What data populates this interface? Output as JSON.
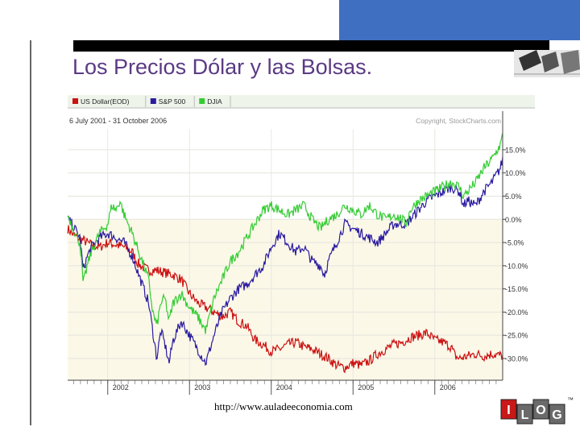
{
  "slide": {
    "title": "Los Precios Dólar y las Bolsas.",
    "footer_url": "http://www.auladeeconomia.com"
  },
  "logo": {
    "letters": [
      "I",
      "L",
      "O",
      "G"
    ],
    "trademark": "™"
  },
  "chart_data": {
    "type": "line",
    "title": "6 July 2001 - 31 October 2006",
    "copyright": "Copyright, StockCharts.com",
    "legend_placement": "top-left",
    "series": [
      {
        "name": "US Dollar(EOD)",
        "color": "#cc1111",
        "points": [
          [
            2001.51,
            -2
          ],
          [
            2001.56,
            -3
          ],
          [
            2001.63,
            -4
          ],
          [
            2001.7,
            -4.5
          ],
          [
            2001.8,
            -5.5
          ],
          [
            2001.9,
            -6
          ],
          [
            2002.0,
            -5
          ],
          [
            2002.1,
            -5.5
          ],
          [
            2002.2,
            -6
          ],
          [
            2002.3,
            -7
          ],
          [
            2002.35,
            -9
          ],
          [
            2002.4,
            -10
          ],
          [
            2002.5,
            -11
          ],
          [
            2002.6,
            -11
          ],
          [
            2002.7,
            -11.5
          ],
          [
            2002.8,
            -12
          ],
          [
            2002.9,
            -13
          ],
          [
            2003.0,
            -16
          ],
          [
            2003.1,
            -18
          ],
          [
            2003.2,
            -19
          ],
          [
            2003.3,
            -20
          ],
          [
            2003.4,
            -21
          ],
          [
            2003.5,
            -20
          ],
          [
            2003.55,
            -21
          ],
          [
            2003.6,
            -22
          ],
          [
            2003.7,
            -23
          ],
          [
            2003.8,
            -26
          ],
          [
            2003.9,
            -27
          ],
          [
            2004.0,
            -28.5
          ],
          [
            2004.1,
            -28
          ],
          [
            2004.2,
            -27
          ],
          [
            2004.3,
            -26.5
          ],
          [
            2004.4,
            -27.5
          ],
          [
            2004.5,
            -28
          ],
          [
            2004.6,
            -29
          ],
          [
            2004.7,
            -30
          ],
          [
            2004.8,
            -31.5
          ],
          [
            2004.9,
            -32
          ],
          [
            2005.0,
            -31
          ],
          [
            2005.1,
            -31.5
          ],
          [
            2005.2,
            -30.5
          ],
          [
            2005.3,
            -29
          ],
          [
            2005.4,
            -28
          ],
          [
            2005.5,
            -27
          ],
          [
            2005.6,
            -26.5
          ],
          [
            2005.7,
            -25.5
          ],
          [
            2005.8,
            -25
          ],
          [
            2005.9,
            -24.5
          ],
          [
            2006.0,
            -26
          ],
          [
            2006.1,
            -26.5
          ],
          [
            2006.2,
            -27.5
          ],
          [
            2006.25,
            -29.5
          ],
          [
            2006.3,
            -30
          ],
          [
            2006.4,
            -29.5
          ],
          [
            2006.5,
            -29
          ],
          [
            2006.6,
            -29.5
          ],
          [
            2006.7,
            -29
          ],
          [
            2006.83,
            -29.5
          ]
        ]
      },
      {
        "name": "S&P 500",
        "color": "#2a1aa0",
        "points": [
          [
            2001.51,
            0
          ],
          [
            2001.56,
            -1
          ],
          [
            2001.63,
            -3
          ],
          [
            2001.66,
            -4
          ],
          [
            2001.7,
            -11
          ],
          [
            2001.75,
            -8
          ],
          [
            2001.8,
            -6
          ],
          [
            2001.9,
            -4
          ],
          [
            2002.0,
            -3
          ],
          [
            2002.1,
            -4
          ],
          [
            2002.2,
            -5
          ],
          [
            2002.3,
            -8
          ],
          [
            2002.4,
            -13
          ],
          [
            2002.5,
            -18
          ],
          [
            2002.55,
            -24
          ],
          [
            2002.6,
            -30
          ],
          [
            2002.65,
            -24
          ],
          [
            2002.7,
            -27
          ],
          [
            2002.75,
            -31
          ],
          [
            2002.8,
            -26
          ],
          [
            2002.85,
            -24
          ],
          [
            2002.9,
            -22
          ],
          [
            2003.0,
            -25
          ],
          [
            2003.1,
            -28
          ],
          [
            2003.2,
            -31
          ],
          [
            2003.3,
            -25
          ],
          [
            2003.4,
            -20
          ],
          [
            2003.5,
            -17
          ],
          [
            2003.6,
            -15
          ],
          [
            2003.7,
            -14
          ],
          [
            2003.8,
            -12
          ],
          [
            2003.9,
            -10
          ],
          [
            2004.0,
            -6
          ],
          [
            2004.1,
            -3
          ],
          [
            2004.2,
            -5
          ],
          [
            2004.3,
            -7
          ],
          [
            2004.4,
            -6
          ],
          [
            2004.5,
            -9
          ],
          [
            2004.6,
            -10
          ],
          [
            2004.65,
            -12
          ],
          [
            2004.7,
            -9
          ],
          [
            2004.8,
            -5
          ],
          [
            2004.9,
            -1
          ],
          [
            2005.0,
            -2
          ],
          [
            2005.1,
            -3
          ],
          [
            2005.2,
            -4
          ],
          [
            2005.3,
            -5
          ],
          [
            2005.4,
            -3
          ],
          [
            2005.5,
            -1
          ],
          [
            2005.6,
            -1
          ],
          [
            2005.65,
            -1
          ],
          [
            2005.7,
            0
          ],
          [
            2005.8,
            2
          ],
          [
            2005.9,
            4
          ],
          [
            2006.0,
            5
          ],
          [
            2006.1,
            6
          ],
          [
            2006.2,
            7
          ],
          [
            2006.3,
            6
          ],
          [
            2006.35,
            3
          ],
          [
            2006.4,
            4
          ],
          [
            2006.5,
            3
          ],
          [
            2006.6,
            6
          ],
          [
            2006.7,
            8
          ],
          [
            2006.8,
            11
          ],
          [
            2006.83,
            13
          ]
        ]
      },
      {
        "name": "DJIA",
        "color": "#33cc33",
        "points": [
          [
            2001.51,
            1
          ],
          [
            2001.56,
            -1
          ],
          [
            2001.6,
            -3
          ],
          [
            2001.66,
            -5
          ],
          [
            2001.7,
            -14
          ],
          [
            2001.75,
            -10
          ],
          [
            2001.8,
            -7
          ],
          [
            2001.9,
            -3
          ],
          [
            2002.0,
            -1
          ],
          [
            2002.05,
            3
          ],
          [
            2002.1,
            2
          ],
          [
            2002.15,
            4
          ],
          [
            2002.2,
            1
          ],
          [
            2002.3,
            -3
          ],
          [
            2002.4,
            -8
          ],
          [
            2002.5,
            -13
          ],
          [
            2002.55,
            -20
          ],
          [
            2002.6,
            -23
          ],
          [
            2002.65,
            -18
          ],
          [
            2002.7,
            -17
          ],
          [
            2002.75,
            -22
          ],
          [
            2002.8,
            -18
          ],
          [
            2002.9,
            -16
          ],
          [
            2003.0,
            -19
          ],
          [
            2003.1,
            -21
          ],
          [
            2003.2,
            -24
          ],
          [
            2003.3,
            -17
          ],
          [
            2003.4,
            -13
          ],
          [
            2003.5,
            -9
          ],
          [
            2003.6,
            -7
          ],
          [
            2003.7,
            -4
          ],
          [
            2003.8,
            -1
          ],
          [
            2003.9,
            2
          ],
          [
            2004.0,
            3
          ],
          [
            2004.1,
            2
          ],
          [
            2004.2,
            1
          ],
          [
            2004.3,
            2
          ],
          [
            2004.4,
            3
          ],
          [
            2004.5,
            0
          ],
          [
            2004.6,
            -2
          ],
          [
            2004.7,
            0
          ],
          [
            2004.8,
            1
          ],
          [
            2004.9,
            3
          ],
          [
            2005.0,
            2
          ],
          [
            2005.1,
            1
          ],
          [
            2005.2,
            3
          ],
          [
            2005.3,
            1
          ],
          [
            2005.4,
            0
          ],
          [
            2005.5,
            1
          ],
          [
            2005.6,
            0
          ],
          [
            2005.65,
            -1
          ],
          [
            2005.7,
            2
          ],
          [
            2005.8,
            4
          ],
          [
            2005.9,
            5
          ],
          [
            2006.0,
            6
          ],
          [
            2006.1,
            7
          ],
          [
            2006.2,
            8
          ],
          [
            2006.3,
            7
          ],
          [
            2006.35,
            5
          ],
          [
            2006.4,
            6
          ],
          [
            2006.5,
            8
          ],
          [
            2006.6,
            11
          ],
          [
            2006.7,
            13
          ],
          [
            2006.8,
            16
          ],
          [
            2006.83,
            18
          ]
        ]
      }
    ],
    "x_ticks": [
      "2002",
      "2003",
      "2004",
      "2005",
      "2006"
    ],
    "x_tick_values": [
      2002,
      2003,
      2004,
      2005,
      2006
    ],
    "y_ticks": [
      "15.0%",
      "10.0%",
      "5.0%",
      "0.0%",
      "-5.0%",
      "-10.0%",
      "-15.0%",
      "-20.0%",
      "-25.0%",
      "-30.0%"
    ],
    "y_tick_values": [
      15,
      10,
      5,
      0,
      -5,
      -10,
      -15,
      -20,
      -25,
      -30
    ],
    "xlim": [
      2001.51,
      2006.83
    ],
    "ylim": [
      -34,
      19.5
    ],
    "grid": true,
    "colors": {
      "background": "#ffffff",
      "negative_region": "#fbf8e8",
      "header_bar": "#d8ead0",
      "axis": "#444444"
    }
  }
}
